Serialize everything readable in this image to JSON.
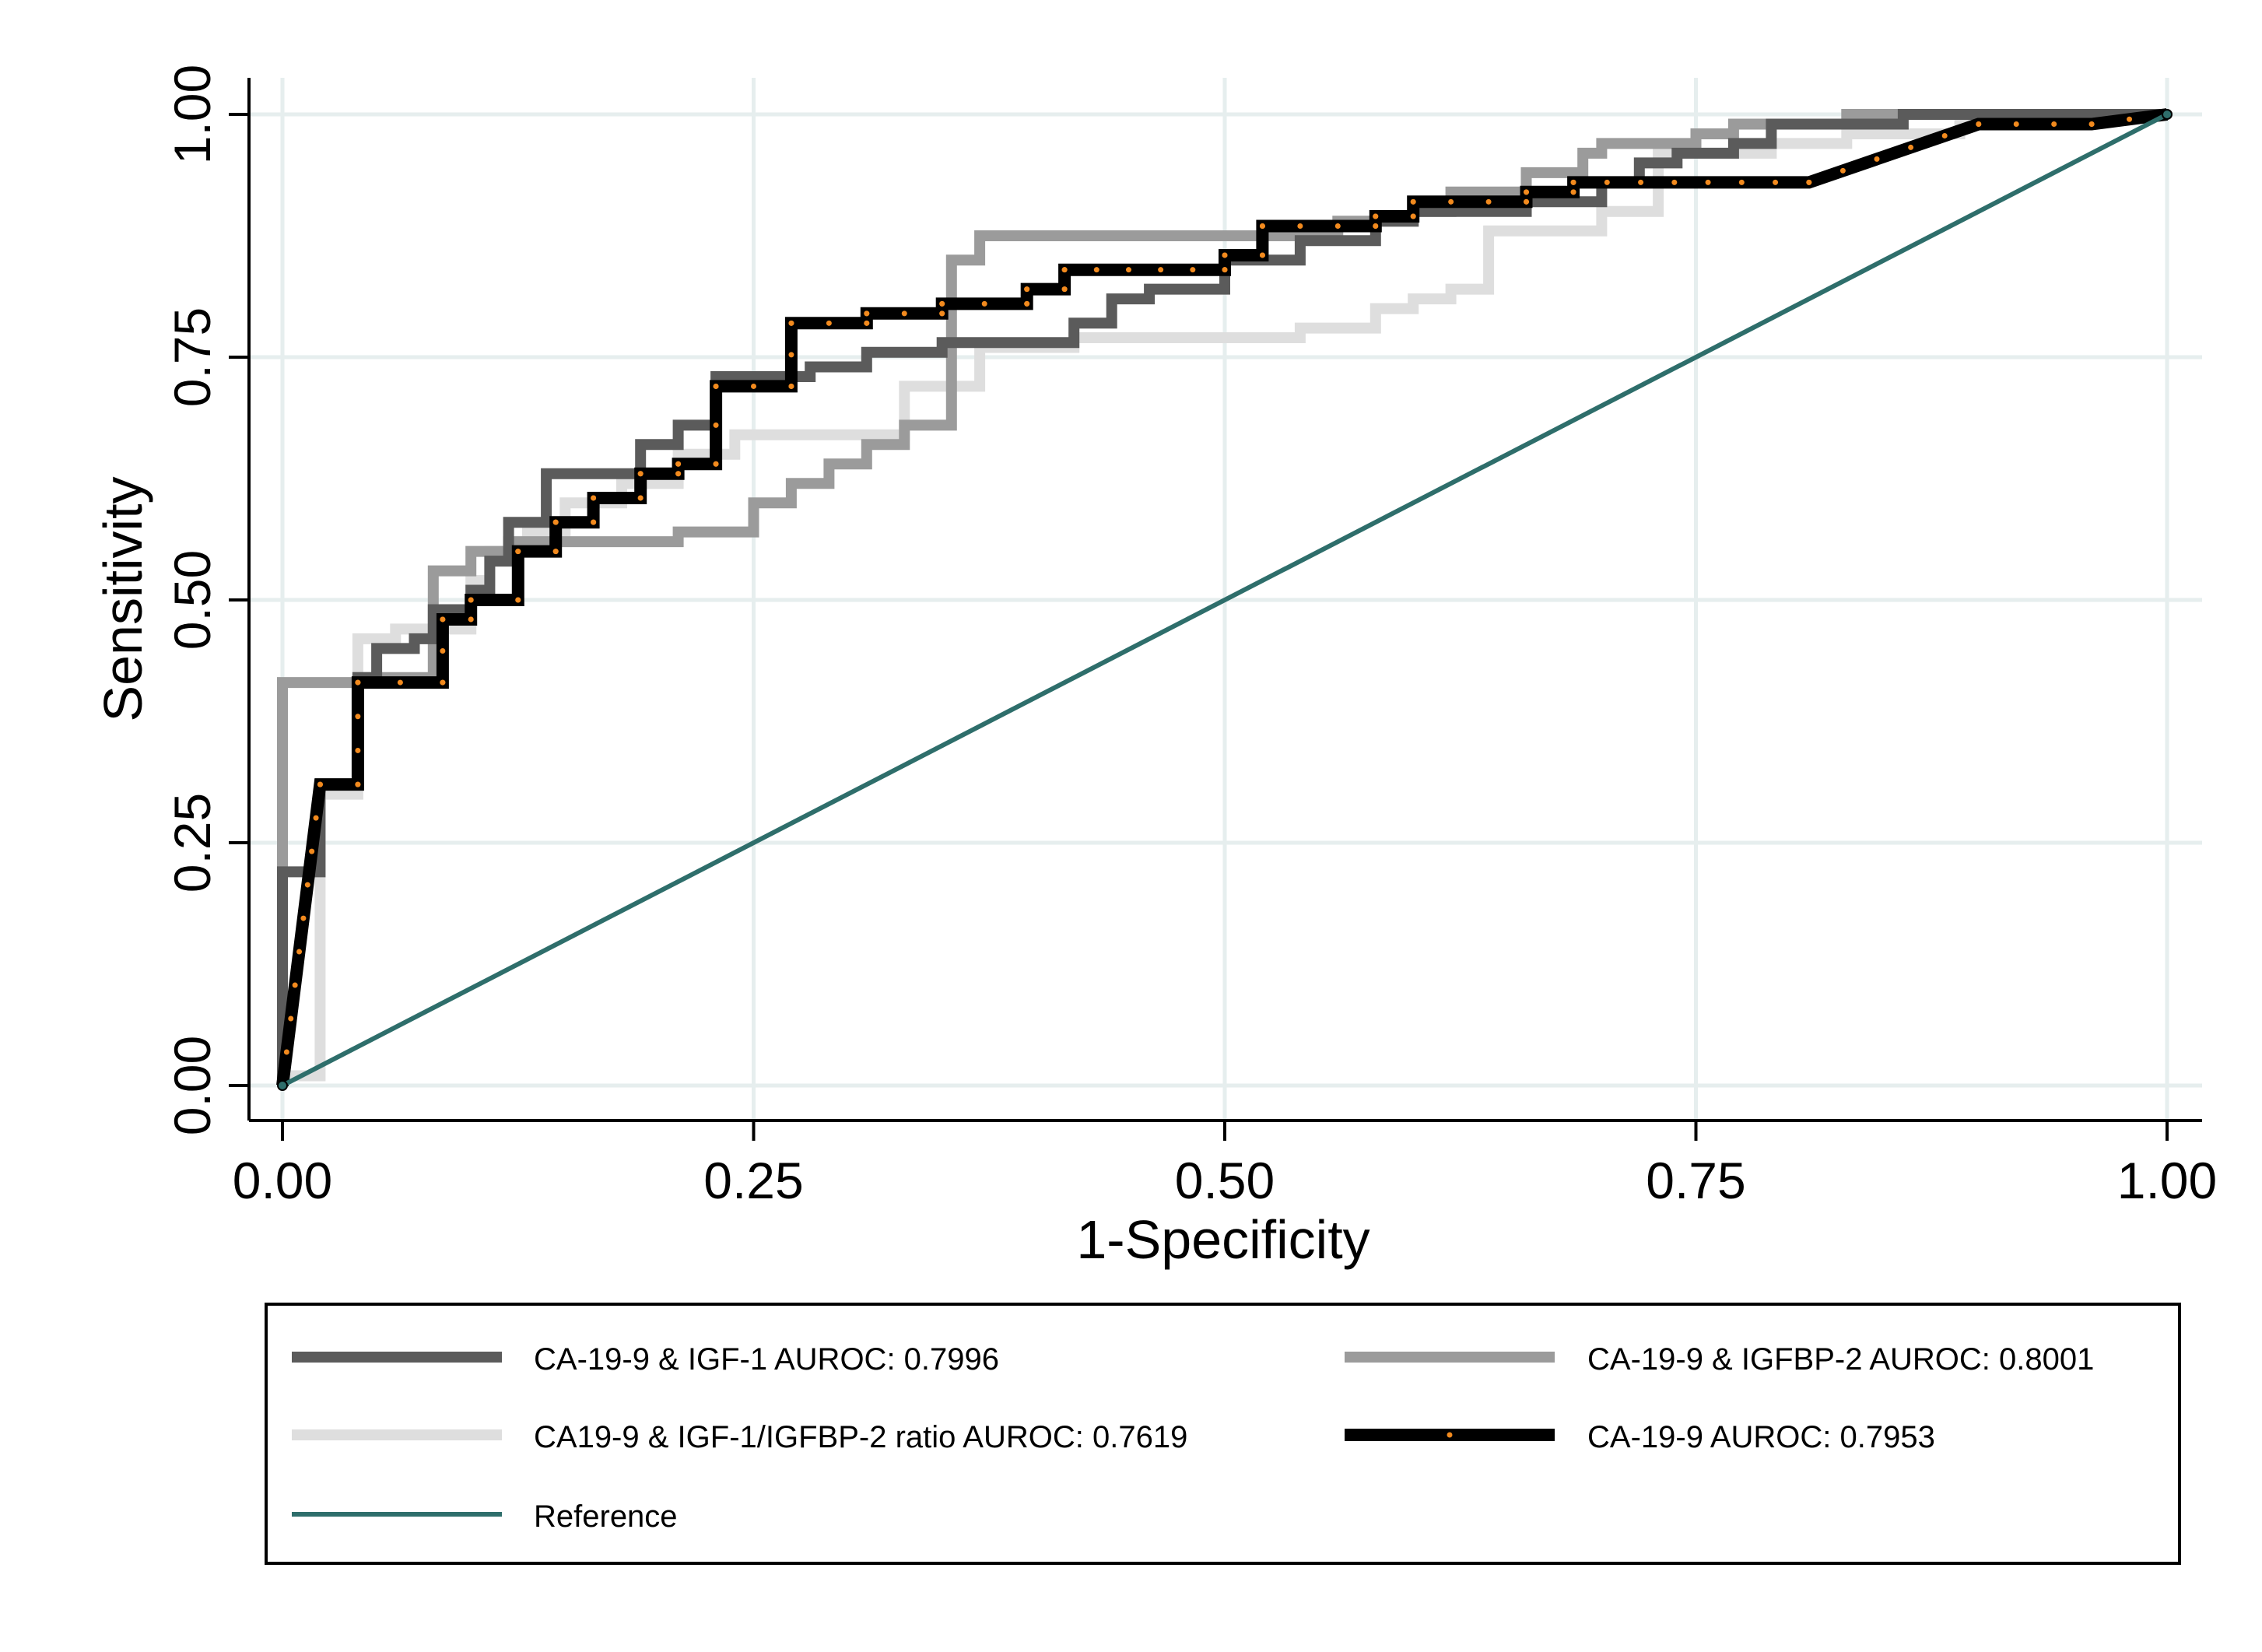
{
  "chart_data": {
    "type": "line",
    "title": "",
    "xlabel": "1-Specificity",
    "ylabel": "Sensitivity",
    "xlim": [
      0,
      1
    ],
    "ylim": [
      0,
      1
    ],
    "xticks": [
      "0.00",
      "0.25",
      "0.50",
      "0.75",
      "1.00"
    ],
    "yticks": [
      "0.00",
      "0.25",
      "0.50",
      "0.75",
      "1.00"
    ],
    "grid": true,
    "legend_position": "bottom",
    "series": [
      {
        "name": "CA-19-9 & IGF-1 AUROC: 0.7996",
        "color": "#5b5b5b",
        "style": "step",
        "points": [
          [
            0,
            0
          ],
          [
            0,
            0.22
          ],
          [
            0.02,
            0.22
          ],
          [
            0.02,
            0.31
          ],
          [
            0.04,
            0.31
          ],
          [
            0.04,
            0.42
          ],
          [
            0.05,
            0.42
          ],
          [
            0.05,
            0.45
          ],
          [
            0.07,
            0.45
          ],
          [
            0.07,
            0.46
          ],
          [
            0.08,
            0.46
          ],
          [
            0.08,
            0.49
          ],
          [
            0.1,
            0.49
          ],
          [
            0.1,
            0.51
          ],
          [
            0.11,
            0.51
          ],
          [
            0.11,
            0.54
          ],
          [
            0.12,
            0.54
          ],
          [
            0.12,
            0.58
          ],
          [
            0.14,
            0.58
          ],
          [
            0.14,
            0.63
          ],
          [
            0.19,
            0.63
          ],
          [
            0.19,
            0.66
          ],
          [
            0.21,
            0.66
          ],
          [
            0.21,
            0.68
          ],
          [
            0.23,
            0.68
          ],
          [
            0.23,
            0.73
          ],
          [
            0.28,
            0.73
          ],
          [
            0.28,
            0.74
          ],
          [
            0.31,
            0.74
          ],
          [
            0.31,
            0.755
          ],
          [
            0.35,
            0.755
          ],
          [
            0.35,
            0.765
          ],
          [
            0.42,
            0.765
          ],
          [
            0.42,
            0.785
          ],
          [
            0.44,
            0.785
          ],
          [
            0.44,
            0.81
          ],
          [
            0.46,
            0.81
          ],
          [
            0.46,
            0.82
          ],
          [
            0.5,
            0.82
          ],
          [
            0.5,
            0.85
          ],
          [
            0.54,
            0.85
          ],
          [
            0.54,
            0.87
          ],
          [
            0.58,
            0.87
          ],
          [
            0.58,
            0.89
          ],
          [
            0.6,
            0.89
          ],
          [
            0.6,
            0.9
          ],
          [
            0.66,
            0.9
          ],
          [
            0.66,
            0.91
          ],
          [
            0.7,
            0.91
          ],
          [
            0.7,
            0.93
          ],
          [
            0.72,
            0.93
          ],
          [
            0.72,
            0.95
          ],
          [
            0.74,
            0.95
          ],
          [
            0.74,
            0.96
          ],
          [
            0.77,
            0.96
          ],
          [
            0.77,
            0.97
          ],
          [
            0.79,
            0.97
          ],
          [
            0.79,
            0.99
          ],
          [
            0.86,
            0.99
          ],
          [
            0.86,
            1
          ],
          [
            1,
            1
          ]
        ]
      },
      {
        "name": "CA-19-9 & IGFBP-2 AUROC: 0.8001",
        "color": "#9b9b9b",
        "style": "step",
        "points": [
          [
            0,
            0
          ],
          [
            0,
            0.415
          ],
          [
            0.04,
            0.415
          ],
          [
            0.04,
            0.42
          ],
          [
            0.08,
            0.42
          ],
          [
            0.08,
            0.53
          ],
          [
            0.1,
            0.53
          ],
          [
            0.1,
            0.55
          ],
          [
            0.12,
            0.55
          ],
          [
            0.12,
            0.56
          ],
          [
            0.21,
            0.56
          ],
          [
            0.21,
            0.57
          ],
          [
            0.25,
            0.57
          ],
          [
            0.25,
            0.6
          ],
          [
            0.27,
            0.6
          ],
          [
            0.27,
            0.62
          ],
          [
            0.29,
            0.62
          ],
          [
            0.29,
            0.64
          ],
          [
            0.31,
            0.64
          ],
          [
            0.31,
            0.66
          ],
          [
            0.33,
            0.66
          ],
          [
            0.33,
            0.68
          ],
          [
            0.355,
            0.68
          ],
          [
            0.355,
            0.85
          ],
          [
            0.37,
            0.85
          ],
          [
            0.37,
            0.875
          ],
          [
            0.56,
            0.875
          ],
          [
            0.56,
            0.89
          ],
          [
            0.6,
            0.89
          ],
          [
            0.6,
            0.9
          ],
          [
            0.62,
            0.9
          ],
          [
            0.62,
            0.92
          ],
          [
            0.66,
            0.92
          ],
          [
            0.66,
            0.94
          ],
          [
            0.69,
            0.94
          ],
          [
            0.69,
            0.96
          ],
          [
            0.7,
            0.96
          ],
          [
            0.7,
            0.97
          ],
          [
            0.75,
            0.97
          ],
          [
            0.75,
            0.98
          ],
          [
            0.77,
            0.98
          ],
          [
            0.77,
            0.99
          ],
          [
            0.83,
            0.99
          ],
          [
            0.83,
            1
          ],
          [
            1,
            1
          ]
        ]
      },
      {
        "name": "CA19-9 & IGF-1/IGFBP-2 ratio AUROC: 0.7619",
        "color": "#dedede",
        "style": "step",
        "points": [
          [
            0,
            0
          ],
          [
            0,
            0.01
          ],
          [
            0.02,
            0.01
          ],
          [
            0.02,
            0.3
          ],
          [
            0.04,
            0.3
          ],
          [
            0.04,
            0.46
          ],
          [
            0.06,
            0.46
          ],
          [
            0.06,
            0.47
          ],
          [
            0.1,
            0.47
          ],
          [
            0.1,
            0.52
          ],
          [
            0.11,
            0.52
          ],
          [
            0.11,
            0.55
          ],
          [
            0.13,
            0.55
          ],
          [
            0.13,
            0.57
          ],
          [
            0.15,
            0.57
          ],
          [
            0.15,
            0.6
          ],
          [
            0.18,
            0.6
          ],
          [
            0.18,
            0.62
          ],
          [
            0.21,
            0.62
          ],
          [
            0.21,
            0.65
          ],
          [
            0.24,
            0.65
          ],
          [
            0.24,
            0.67
          ],
          [
            0.33,
            0.67
          ],
          [
            0.33,
            0.72
          ],
          [
            0.37,
            0.72
          ],
          [
            0.37,
            0.76
          ],
          [
            0.42,
            0.76
          ],
          [
            0.42,
            0.77
          ],
          [
            0.54,
            0.77
          ],
          [
            0.54,
            0.78
          ],
          [
            0.58,
            0.78
          ],
          [
            0.58,
            0.8
          ],
          [
            0.6,
            0.8
          ],
          [
            0.6,
            0.81
          ],
          [
            0.62,
            0.81
          ],
          [
            0.62,
            0.82
          ],
          [
            0.64,
            0.82
          ],
          [
            0.64,
            0.88
          ],
          [
            0.7,
            0.88
          ],
          [
            0.7,
            0.9
          ],
          [
            0.73,
            0.9
          ],
          [
            0.73,
            0.96
          ],
          [
            0.79,
            0.96
          ],
          [
            0.79,
            0.97
          ],
          [
            0.83,
            0.97
          ],
          [
            0.83,
            0.98
          ],
          [
            0.89,
            0.98
          ],
          [
            0.89,
            0.99
          ],
          [
            0.96,
            0.99
          ],
          [
            0.96,
            1
          ],
          [
            1,
            1
          ]
        ]
      },
      {
        "name": "CA-19-9 AUROC: 0.7953",
        "color": "#000000",
        "marker_color": "#f28a1e",
        "style": "step",
        "points": [
          [
            0,
            0
          ],
          [
            0.02,
            0.31
          ],
          [
            0.04,
            0.31
          ],
          [
            0.04,
            0.415
          ],
          [
            0.085,
            0.415
          ],
          [
            0.085,
            0.48
          ],
          [
            0.1,
            0.48
          ],
          [
            0.1,
            0.5
          ],
          [
            0.125,
            0.5
          ],
          [
            0.125,
            0.55
          ],
          [
            0.145,
            0.55
          ],
          [
            0.145,
            0.58
          ],
          [
            0.165,
            0.58
          ],
          [
            0.165,
            0.605
          ],
          [
            0.19,
            0.605
          ],
          [
            0.19,
            0.63
          ],
          [
            0.21,
            0.63
          ],
          [
            0.21,
            0.64
          ],
          [
            0.23,
            0.64
          ],
          [
            0.23,
            0.72
          ],
          [
            0.27,
            0.72
          ],
          [
            0.27,
            0.785
          ],
          [
            0.31,
            0.785
          ],
          [
            0.31,
            0.795
          ],
          [
            0.35,
            0.795
          ],
          [
            0.35,
            0.805
          ],
          [
            0.395,
            0.805
          ],
          [
            0.395,
            0.82
          ],
          [
            0.415,
            0.82
          ],
          [
            0.415,
            0.84
          ],
          [
            0.5,
            0.84
          ],
          [
            0.5,
            0.855
          ],
          [
            0.52,
            0.855
          ],
          [
            0.52,
            0.885
          ],
          [
            0.58,
            0.885
          ],
          [
            0.58,
            0.895
          ],
          [
            0.6,
            0.895
          ],
          [
            0.6,
            0.91
          ],
          [
            0.66,
            0.91
          ],
          [
            0.66,
            0.92
          ],
          [
            0.685,
            0.92
          ],
          [
            0.685,
            0.93
          ],
          [
            0.81,
            0.93
          ],
          [
            0.9,
            0.99
          ],
          [
            0.96,
            0.99
          ],
          [
            1,
            1
          ]
        ]
      },
      {
        "name": "Reference",
        "color": "#2e6e6b",
        "style": "line",
        "points": [
          [
            0,
            0
          ],
          [
            1,
            1
          ]
        ]
      }
    ],
    "legend": [
      "CA-19-9 & IGF-1 AUROC: 0.7996",
      "CA-19-9 & IGFBP-2 AUROC: 0.8001",
      "CA19-9 & IGF-1/IGFBP-2 ratio AUROC: 0.7619",
      "CA-19-9 AUROC: 0.7953",
      "Reference"
    ]
  }
}
